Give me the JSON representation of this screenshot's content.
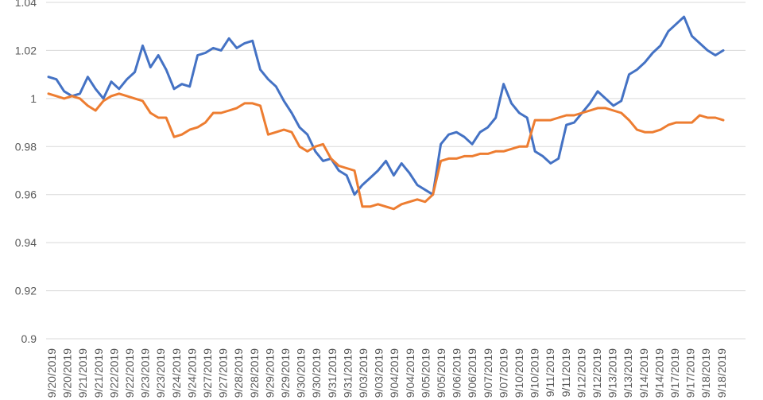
{
  "chart_data": {
    "type": "line",
    "title": "",
    "xlabel": "",
    "ylabel": "",
    "ylim": [
      0.9,
      1.04
    ],
    "yticks": [
      "0.9",
      "0.92",
      "0.94",
      "0.96",
      "0.98",
      "1",
      "1.02",
      "1.04"
    ],
    "grid": true,
    "legend": "none",
    "x_tick_labels": [
      "9/20/2019",
      "9/20/2019",
      "9/21/2019",
      "9/21/2019",
      "9/22/2019",
      "9/22/2019",
      "9/23/2019",
      "9/23/2019",
      "9/24/2019",
      "9/24/2019",
      "9/27/2019",
      "9/27/2019",
      "9/28/2019",
      "9/28/2019",
      "9/29/2019",
      "9/29/2019",
      "9/30/2019",
      "9/30/2019",
      "9/31/2019",
      "9/31/2019",
      "9/03/2019",
      "9/03/2019",
      "9/04/2019",
      "9/04/2019",
      "9/05/2019",
      "9/05/2019",
      "9/06/2019",
      "9/06/2019",
      "9/07/2019",
      "9/07/2019",
      "9/10/2019",
      "9/10/2019",
      "9/11/2019",
      "9/11/2019",
      "9/12/2019",
      "9/12/2019",
      "9/13/2019",
      "9/13/2019",
      "9/14/2019",
      "9/14/2019",
      "9/17/2019",
      "9/17/2019",
      "9/18/2019",
      "9/18/2019"
    ],
    "series": [
      {
        "color": "#4472c4",
        "values": [
          1.009,
          1.008,
          1.003,
          1.001,
          1.002,
          1.009,
          1.004,
          1.0,
          1.007,
          1.004,
          1.008,
          1.011,
          1.022,
          1.013,
          1.018,
          1.012,
          1.004,
          1.006,
          1.005,
          1.018,
          1.019,
          1.021,
          1.02,
          1.025,
          1.021,
          1.023,
          1.024,
          1.012,
          1.008,
          1.005,
          0.999,
          0.994,
          0.988,
          0.985,
          0.978,
          0.974,
          0.975,
          0.97,
          0.968,
          0.96,
          0.964,
          0.967,
          0.97,
          0.974,
          0.968,
          0.973,
          0.969,
          0.964,
          0.962,
          0.96,
          0.981,
          0.985,
          0.986,
          0.984,
          0.981,
          0.986,
          0.988,
          0.992,
          1.006,
          0.998,
          0.994,
          0.992,
          0.978,
          0.976,
          0.973,
          0.975,
          0.989,
          0.99,
          0.994,
          0.998,
          1.003,
          1.0,
          0.997,
          0.999,
          1.01,
          1.012,
          1.015,
          1.019,
          1.022,
          1.028,
          1.031,
          1.034,
          1.026,
          1.023,
          1.02,
          1.018,
          1.02
        ]
      },
      {
        "color": "#ed7d31",
        "values": [
          1.002,
          1.001,
          1.0,
          1.001,
          1.0,
          0.997,
          0.995,
          0.999,
          1.001,
          1.002,
          1.001,
          1.0,
          0.999,
          0.994,
          0.992,
          0.992,
          0.984,
          0.985,
          0.987,
          0.988,
          0.99,
          0.994,
          0.994,
          0.995,
          0.996,
          0.998,
          0.998,
          0.997,
          0.985,
          0.986,
          0.987,
          0.986,
          0.98,
          0.978,
          0.98,
          0.981,
          0.975,
          0.972,
          0.971,
          0.97,
          0.955,
          0.955,
          0.956,
          0.955,
          0.954,
          0.956,
          0.957,
          0.958,
          0.957,
          0.96,
          0.974,
          0.975,
          0.975,
          0.976,
          0.976,
          0.977,
          0.977,
          0.978,
          0.978,
          0.979,
          0.98,
          0.98,
          0.991,
          0.991,
          0.991,
          0.992,
          0.993,
          0.993,
          0.994,
          0.995,
          0.996,
          0.996,
          0.995,
          0.994,
          0.991,
          0.987,
          0.986,
          0.986,
          0.987,
          0.989,
          0.99,
          0.99,
          0.99,
          0.993,
          0.992,
          0.992,
          0.991
        ]
      }
    ]
  }
}
